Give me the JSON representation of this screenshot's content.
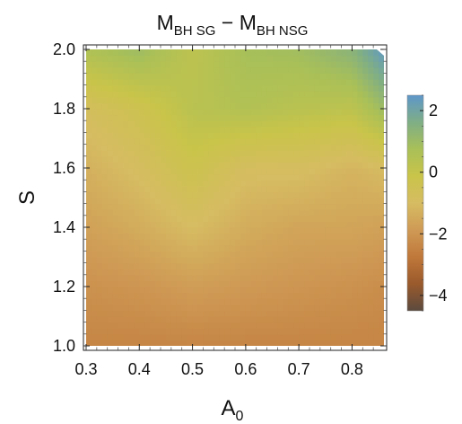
{
  "chart_data": {
    "type": "heatmap",
    "title": {
      "main": "M",
      "sub1": "BH SG",
      "minus": " − M",
      "sub2": "BH NSG"
    },
    "xlabel": {
      "main": "A",
      "sub": "0"
    },
    "ylabel": "S",
    "xlim": [
      0.3,
      0.86
    ],
    "ylim": [
      1.0,
      2.0
    ],
    "x_ticks": [
      "0.3",
      "0.4",
      "0.5",
      "0.6",
      "0.7",
      "0.8"
    ],
    "y_ticks": [
      "1.0",
      "1.2",
      "1.4",
      "1.6",
      "1.8",
      "2.0"
    ],
    "colorbar": {
      "range": [
        -4.5,
        2.5
      ],
      "ticks": [
        "2",
        "0",
        "−2",
        "−4"
      ],
      "tick_values": [
        2,
        0,
        -2,
        -4
      ],
      "colors": [
        "#5b4a3e",
        "#9a5a2c",
        "#c0783a",
        "#cf9a55",
        "#d6bc62",
        "#c9c44a",
        "#a9c058",
        "#7fae86",
        "#5e97c9"
      ]
    },
    "frame": true,
    "grid": false,
    "surface_samples": {
      "x": [
        0.3,
        0.4,
        0.5,
        0.6,
        0.7,
        0.8,
        0.86
      ],
      "y": [
        1.0,
        1.2,
        1.4,
        1.6,
        1.8,
        2.0
      ],
      "z": [
        [
          -2.4,
          -2.4,
          -2.4,
          -2.4,
          -2.4,
          -2.4,
          -2.4
        ],
        [
          -2.1,
          -2.0,
          -1.8,
          -1.9,
          -2.0,
          -2.1,
          -2.2
        ],
        [
          -1.7,
          -1.4,
          -1.0,
          -1.4,
          -1.6,
          -1.6,
          -1.7
        ],
        [
          -1.3,
          -0.9,
          -0.3,
          -0.9,
          -0.9,
          -1.2,
          -1.0
        ],
        [
          -0.8,
          -0.4,
          0.3,
          0.5,
          0.3,
          0.2,
          1.0
        ],
        [
          0.6,
          1.0,
          0.2,
          0.8,
          0.9,
          1.4,
          2.4
        ]
      ]
    }
  }
}
